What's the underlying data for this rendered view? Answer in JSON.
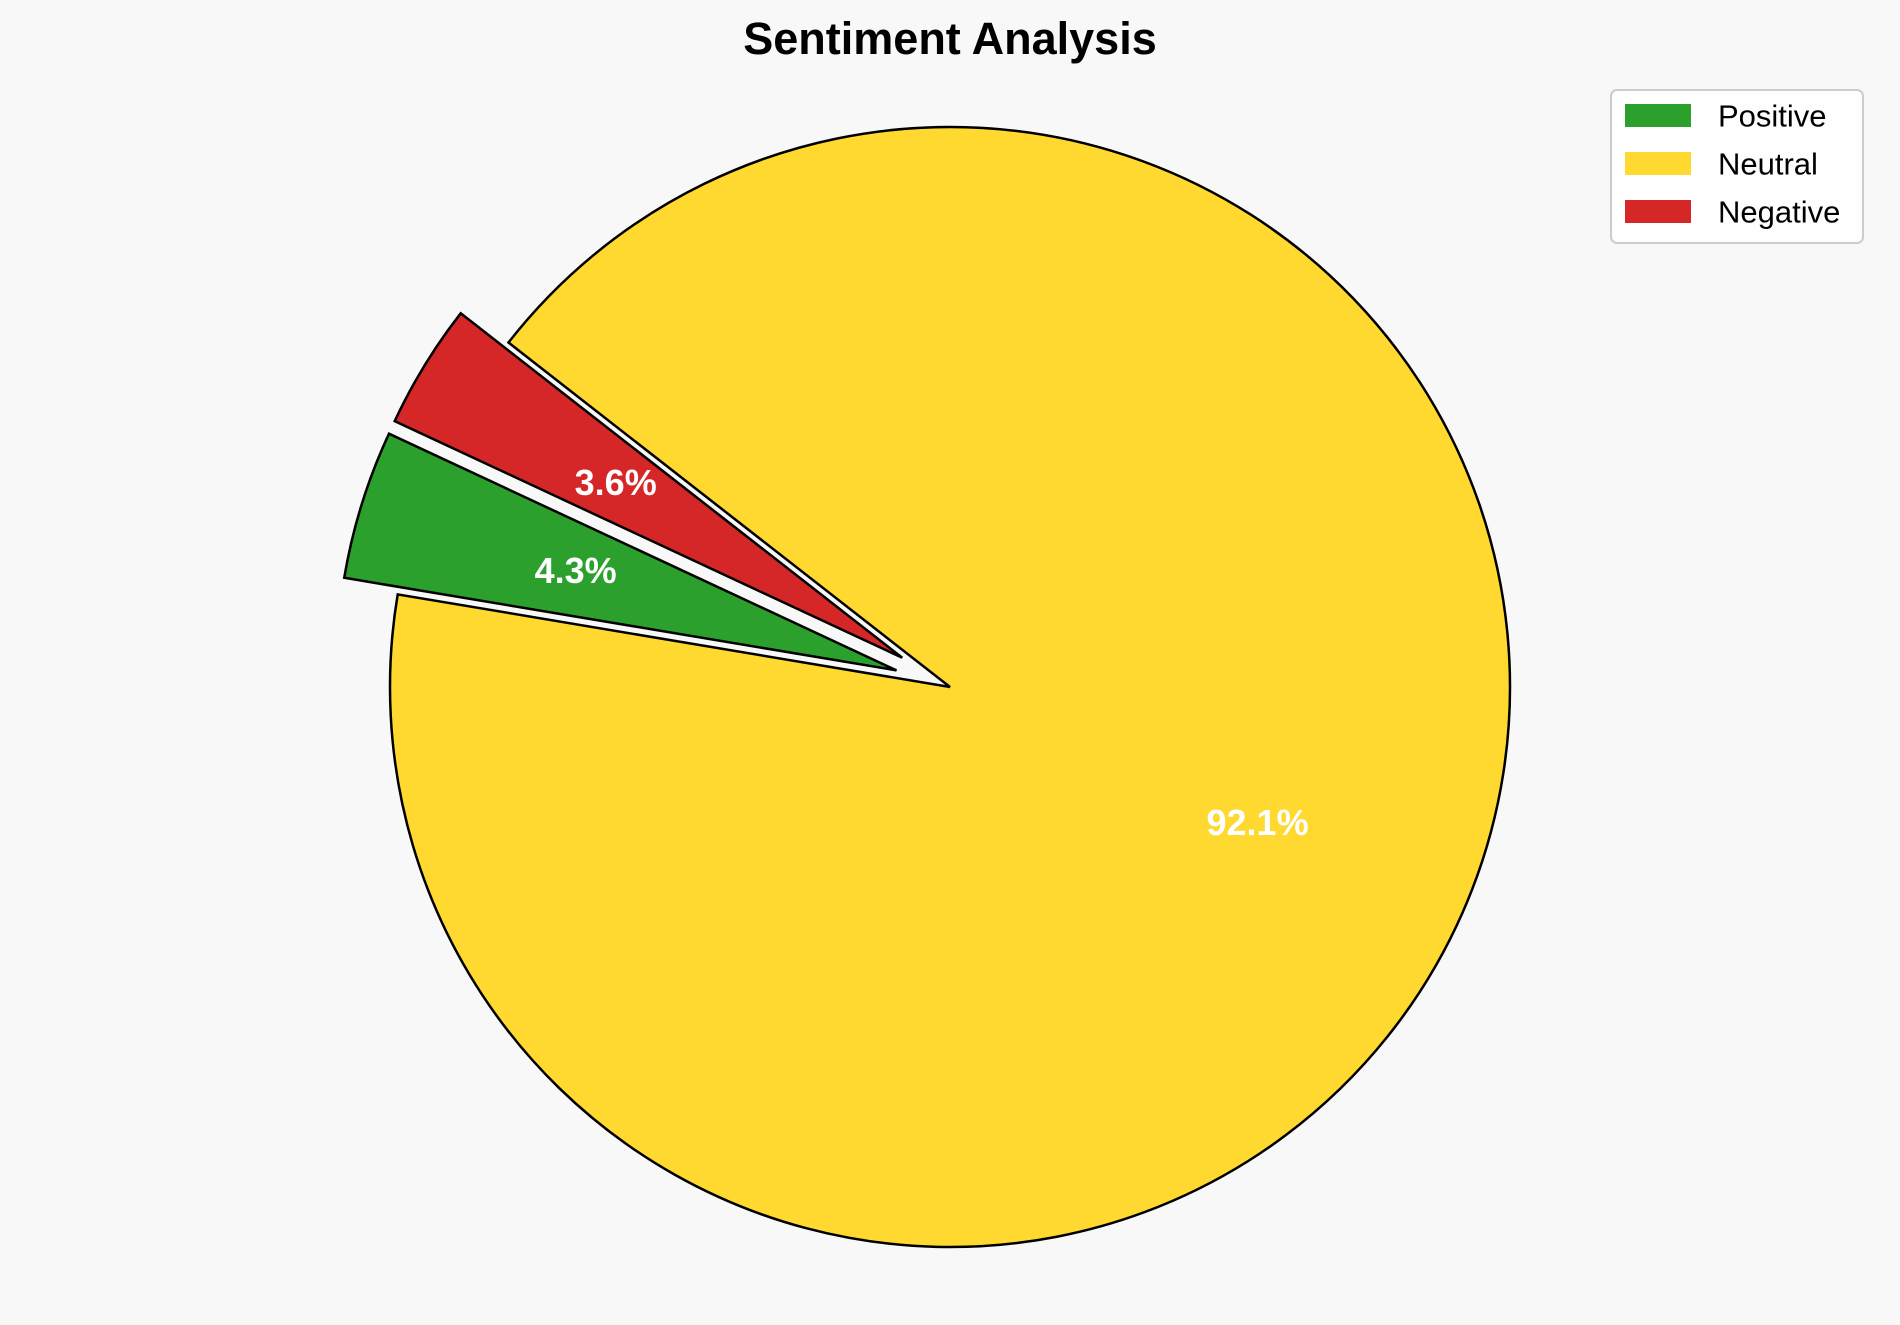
{
  "chart_data": {
    "type": "pie",
    "title": "Sentiment Analysis",
    "categories": [
      "Positive",
      "Neutral",
      "Negative"
    ],
    "values": [
      4.3,
      92.1,
      3.6
    ],
    "labels": [
      "4.3%",
      "92.1%",
      "3.6%"
    ],
    "colors": [
      "#2ca02c",
      "#ffd92f",
      "#d62728"
    ],
    "exploded": [
      true,
      false,
      true
    ],
    "start_angle_deg": 155,
    "direction": "counterclockwise",
    "edge_color": "#000000",
    "legend": {
      "position": "top-right",
      "entries": [
        "Positive",
        "Neutral",
        "Negative"
      ]
    }
  }
}
